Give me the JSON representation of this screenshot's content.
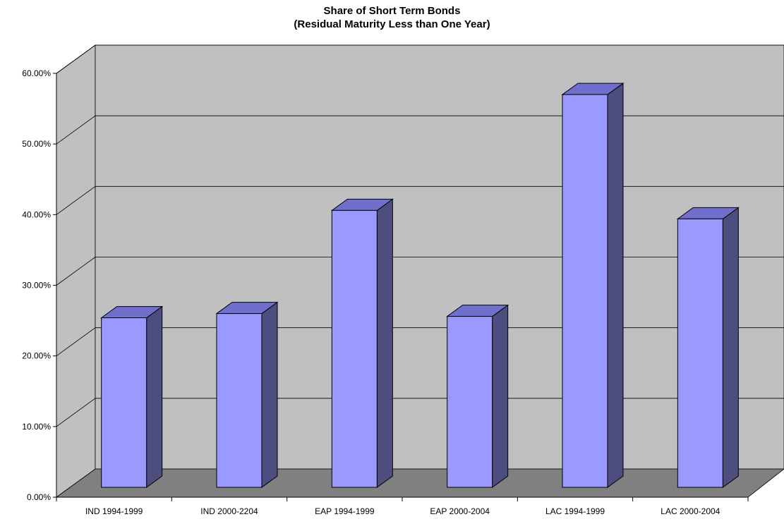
{
  "chart_data": {
    "type": "bar",
    "title": "Share of Short Term Bonds",
    "subtitle": "(Residual Maturity Less than One Year)",
    "categories": [
      "IND 1994-1999",
      "IND 2000-2204",
      "EAP 1994-1999",
      "EAP 2000-2004",
      "LAC 1994-1999",
      "LAC 2000-2004"
    ],
    "values": [
      0.24,
      0.246,
      0.392,
      0.242,
      0.556,
      0.38
    ],
    "ylim": [
      0,
      0.6
    ],
    "yticks": [
      "0.00%",
      "10.00%",
      "20.00%",
      "30.00%",
      "40.00%",
      "50.00%",
      "60.00%"
    ],
    "grid": true,
    "legend": "none",
    "style": "3d-column",
    "colors": {
      "bar_front": "#9999ff",
      "bar_top": "#7070cc",
      "bar_side": "#4d4d80",
      "wall": "#c0c0c0",
      "floor": "#808080"
    }
  }
}
